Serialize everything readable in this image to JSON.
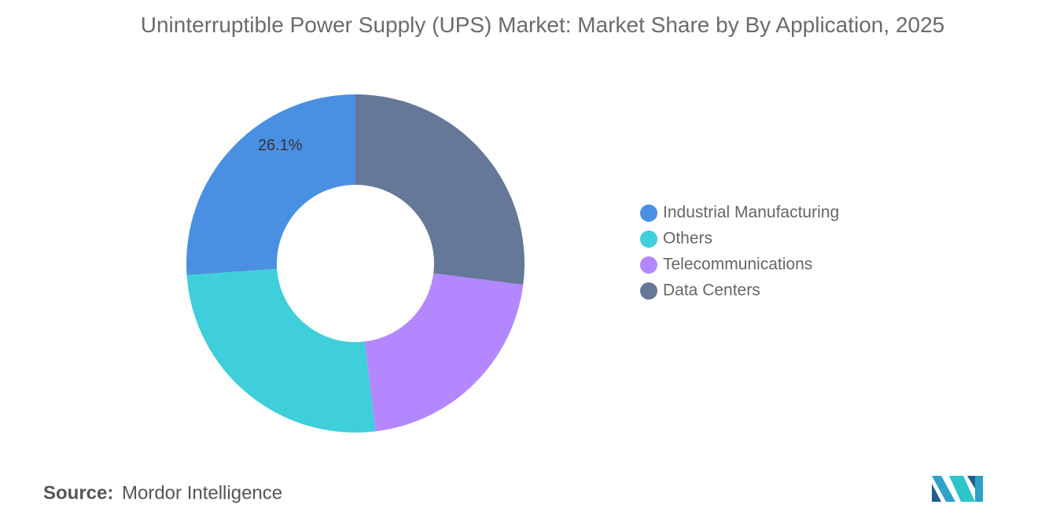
{
  "chart_data": {
    "type": "donut",
    "title": "Uninterruptible Power Supply (UPS) Market: Market Share by By Application, 2025",
    "categories": [
      "Industrial Manufacturing",
      "Others",
      "Telecommunications",
      "Data Centers"
    ],
    "values": [
      26.1,
      25.8,
      21.1,
      27.0
    ],
    "value_labels": [
      "26.1%",
      null,
      null,
      null
    ],
    "colors": [
      "#4a90e2",
      "#3ecfda",
      "#b388ff",
      "#657897"
    ],
    "legend": "right"
  },
  "source": {
    "label": "Source:",
    "name": "Mordor Intelligence"
  }
}
